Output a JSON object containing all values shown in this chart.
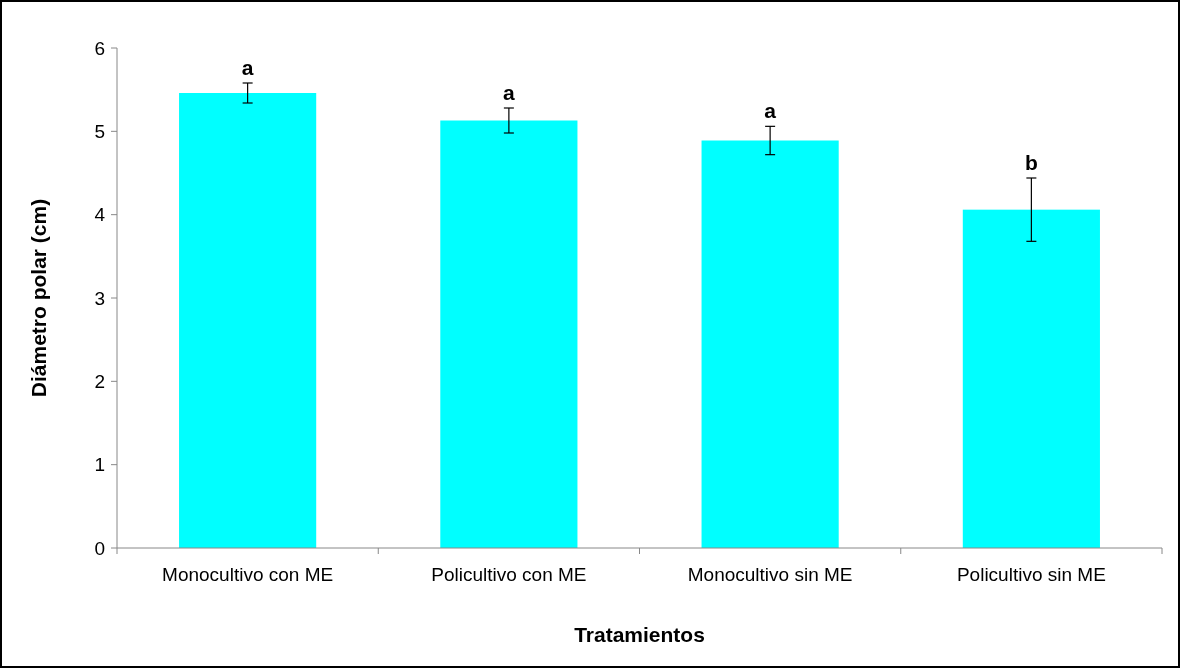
{
  "chart_data": {
    "type": "bar",
    "xlabel": "Tratamientos",
    "ylabel": "Diámetro polar (cm)",
    "categories": [
      "Monocultivo con ME",
      "Policultivo con ME",
      "Monocultivo sin ME",
      "Policultivo sin ME"
    ],
    "values": [
      5.46,
      5.13,
      4.89,
      4.06
    ],
    "errors": [
      0.12,
      0.15,
      0.17,
      0.38
    ],
    "color": "#00ffff",
    "ylim": [
      0,
      6
    ],
    "yticks": [
      0,
      1,
      2,
      3,
      4,
      5,
      6
    ],
    "grid": false,
    "annotations": [
      {
        "text": "a",
        "x": "Monocultivo con ME",
        "y": 5.58
      },
      {
        "text": "a",
        "x": "Policultivo con ME",
        "y": 5.28
      },
      {
        "text": "a",
        "x": "Monocultivo sin ME",
        "y": 5.06
      },
      {
        "text": "b",
        "x": "Policultivo sin ME",
        "y": 4.44
      }
    ]
  }
}
